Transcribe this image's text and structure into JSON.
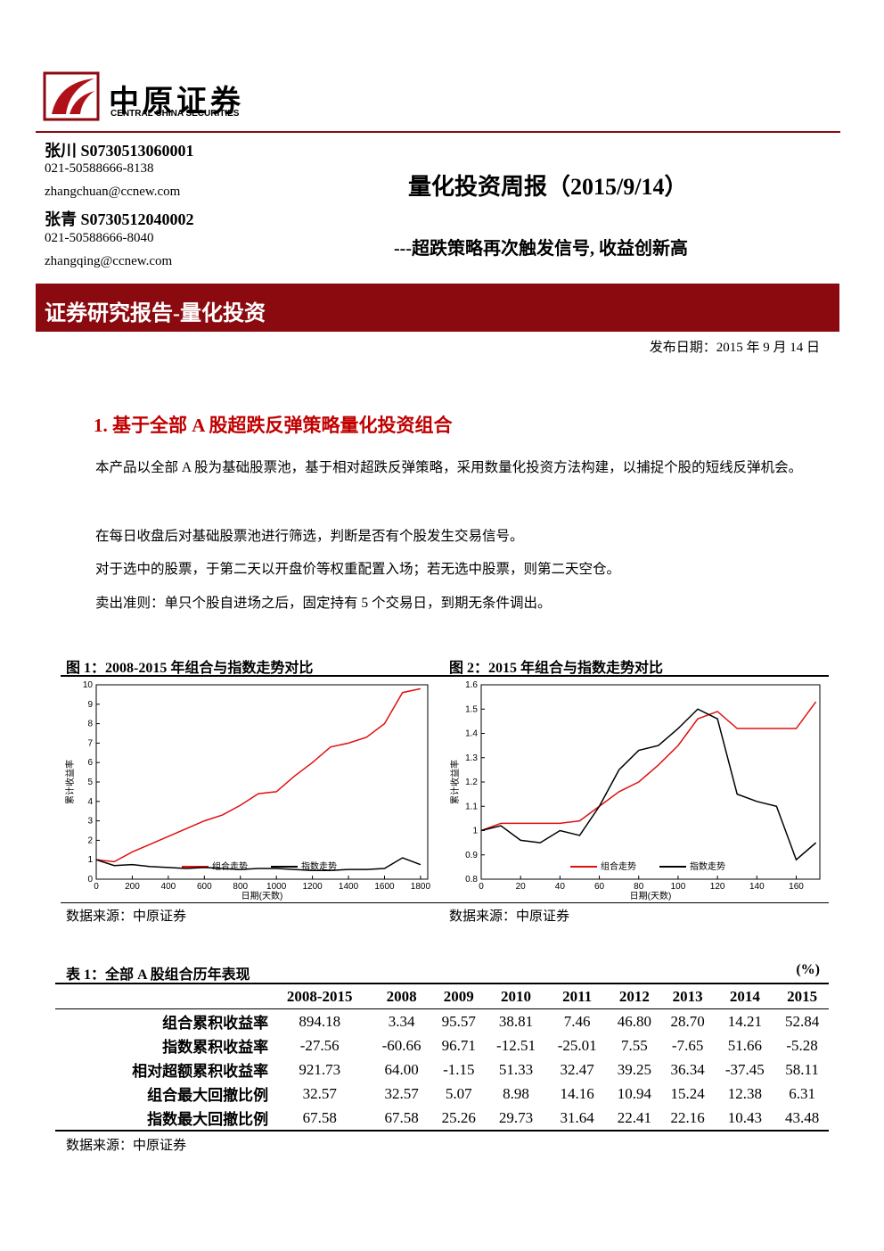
{
  "header": {
    "brand": "中原证券",
    "brand_en": "CENTRAL CHINA SECURITIES"
  },
  "authors": [
    {
      "name": "张川 S0730513060001",
      "phone": "021-50588666-8138",
      "email": "zhangchuan@ccnew.com"
    },
    {
      "name": "张青 S0730512040002",
      "phone": "021-50588666-8040",
      "email": "zhangqing@ccnew.com"
    }
  ],
  "title": "量化投资周报（2015/9/14）",
  "subtitle": "---超跌策略再次触发信号, 收益创新高",
  "banner": "证券研究报告-量化投资",
  "date": "发布日期：2015 年 9 月 14 日",
  "section": {
    "heading": "1. 基于全部 A 股超跌反弹策略量化投资组合",
    "paragraphs": [
      "本产品以全部 A 股为基础股票池，基于相对超跌反弹策略，采用数量化投资方法构建，以捕捉个股的短线反弹机会。",
      "在每日收盘后对基础股票池进行筛选，判断是否有个股发生交易信号。",
      "对于选中的股票，于第二天以开盘价等权重配置入场；若无选中股票，则第二天空仓。",
      "卖出准则：单只个股自进场之后，固定持有 5 个交易日，到期无条件调出。"
    ]
  },
  "figures": [
    {
      "caption": "图 1：2008-2015 年组合与指数走势对比",
      "source": "数据来源：中原证券"
    },
    {
      "caption": "图 2：2015 年组合与指数走势对比",
      "source": "数据来源：中原证券"
    }
  ],
  "chart_data": [
    {
      "type": "line",
      "xlabel": "日期(天数)",
      "ylabel": "累计收益率",
      "legend": "lower center",
      "x": [
        0,
        100,
        200,
        300,
        400,
        500,
        600,
        700,
        800,
        900,
        1000,
        1100,
        1200,
        1300,
        1400,
        1500,
        1600,
        1700,
        1800
      ],
      "series": [
        {
          "name": "组合走势",
          "color": "#e01010",
          "values": [
            1,
            0.9,
            1.4,
            1.8,
            2.2,
            2.6,
            3.0,
            3.3,
            3.8,
            4.4,
            4.5,
            5.3,
            6.0,
            6.8,
            7.0,
            7.3,
            8.0,
            9.6,
            9.8
          ]
        },
        {
          "name": "指数走势",
          "color": "#000000",
          "values": [
            1,
            0.7,
            0.75,
            0.65,
            0.6,
            0.55,
            0.6,
            0.55,
            0.5,
            0.55,
            0.55,
            0.5,
            0.45,
            0.45,
            0.5,
            0.5,
            0.55,
            1.1,
            0.75
          ]
        }
      ],
      "xlim": [
        0,
        1840
      ],
      "xticks": [
        0,
        200,
        400,
        600,
        800,
        1000,
        1200,
        1400,
        1600,
        1800
      ],
      "ylim": [
        0,
        10
      ],
      "yticks": [
        0,
        1,
        2,
        3,
        4,
        5,
        6,
        7,
        8,
        9,
        10
      ]
    },
    {
      "type": "line",
      "xlabel": "日期(天数)",
      "ylabel": "累计收益率",
      "legend": "lower center",
      "x": [
        0,
        10,
        20,
        30,
        40,
        50,
        60,
        70,
        80,
        90,
        100,
        110,
        120,
        130,
        140,
        150,
        160,
        170
      ],
      "series": [
        {
          "name": "组合走势",
          "color": "#e01010",
          "values": [
            1.0,
            1.03,
            1.03,
            1.03,
            1.03,
            1.04,
            1.1,
            1.16,
            1.2,
            1.27,
            1.35,
            1.46,
            1.49,
            1.42,
            1.42,
            1.42,
            1.42,
            1.53
          ]
        },
        {
          "name": "指数走势",
          "color": "#000000",
          "values": [
            1.0,
            1.02,
            0.96,
            0.95,
            1.0,
            0.98,
            1.1,
            1.25,
            1.33,
            1.35,
            1.42,
            1.5,
            1.46,
            1.15,
            1.12,
            1.1,
            0.88,
            0.95
          ]
        }
      ],
      "xlim": [
        0,
        172
      ],
      "xticks": [
        0,
        20,
        40,
        60,
        80,
        100,
        120,
        140,
        160
      ],
      "ylim": [
        0.8,
        1.6
      ],
      "yticks": [
        0.8,
        0.9,
        1,
        1.1,
        1.2,
        1.3,
        1.4,
        1.5,
        1.6
      ]
    }
  ],
  "table": {
    "title": "表 1：全部 A 股组合历年表现",
    "unit": "(%)",
    "columns": [
      "2008-2015",
      "2008",
      "2009",
      "2010",
      "2011",
      "2012",
      "2013",
      "2014",
      "2015"
    ],
    "rows": [
      [
        "组合累积收益率",
        "894.18",
        "3.34",
        "95.57",
        "38.81",
        "7.46",
        "46.80",
        "28.70",
        "14.21",
        "52.84"
      ],
      [
        "指数累积收益率",
        "-27.56",
        "-60.66",
        "96.71",
        "-12.51",
        "-25.01",
        "7.55",
        "-7.65",
        "51.66",
        "-5.28"
      ],
      [
        "相对超额累积收益率",
        "921.73",
        "64.00",
        "-1.15",
        "51.33",
        "32.47",
        "39.25",
        "36.34",
        "-37.45",
        "58.11"
      ],
      [
        "组合最大回撤比例",
        "32.57",
        "32.57",
        "5.07",
        "8.98",
        "14.16",
        "10.94",
        "15.24",
        "12.38",
        "6.31"
      ],
      [
        "指数最大回撤比例",
        "67.58",
        "67.58",
        "25.26",
        "29.73",
        "31.64",
        "22.41",
        "22.16",
        "10.43",
        "43.48"
      ]
    ],
    "source": "数据来源：中原证券"
  }
}
